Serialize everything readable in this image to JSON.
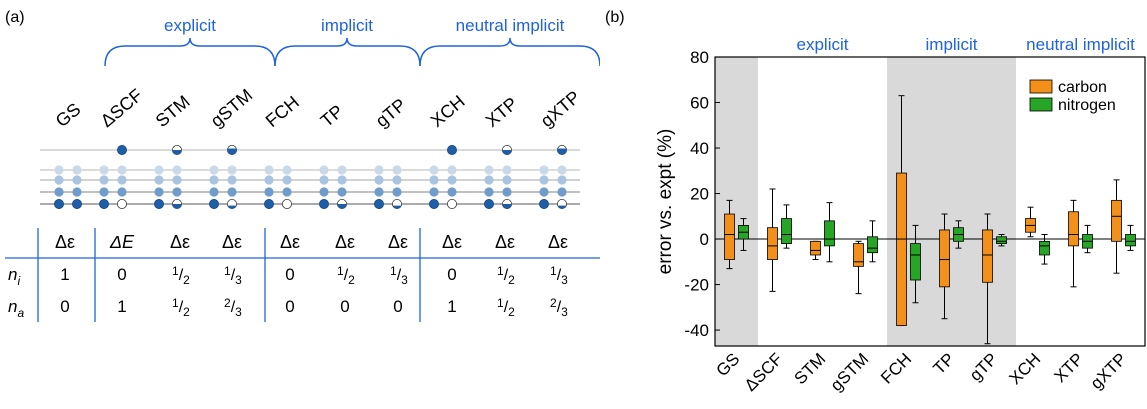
{
  "panel_a": {
    "label": "(a)",
    "groups": [
      {
        "name": "explicit",
        "color": "#1f63e0"
      },
      {
        "name": "implicit",
        "color": "#1f63e0"
      },
      {
        "name": "neutral implicit",
        "color": "#1f63e0"
      }
    ],
    "methods": [
      "GS",
      "ΔSCF",
      "STM",
      "gSTM",
      "FCH",
      "TP",
      "gTP",
      "XCH",
      "XTP",
      "gXTP"
    ],
    "occupation_states": [
      {
        "method": "GS",
        "core": "full",
        "virtual": "empty"
      },
      {
        "method": "ΔSCF",
        "core": "empty",
        "virtual": "full"
      },
      {
        "method": "STM",
        "core": "half",
        "virtual": "half"
      },
      {
        "method": "gSTM",
        "core": "third",
        "virtual": "two_thirds"
      },
      {
        "method": "FCH",
        "core": "empty",
        "virtual": "empty"
      },
      {
        "method": "TP",
        "core": "half",
        "virtual": "empty"
      },
      {
        "method": "gTP",
        "core": "third",
        "virtual": "empty"
      },
      {
        "method": "XCH",
        "core": "empty",
        "virtual": "full"
      },
      {
        "method": "XTP",
        "core": "half",
        "virtual": "half"
      },
      {
        "method": "gXTP",
        "core": "third",
        "virtual": "two_thirds"
      }
    ],
    "table": {
      "header": [
        "Δε",
        "ΔE",
        "Δε",
        "Δε",
        "Δε",
        "Δε",
        "Δε",
        "Δε",
        "Δε",
        "Δε"
      ],
      "rows": [
        {
          "label": "n",
          "subscript": "i",
          "values": [
            {
              "text": "1"
            },
            {
              "text": "0"
            },
            {
              "num": "1",
              "den": "2"
            },
            {
              "num": "1",
              "den": "3"
            },
            {
              "text": "0"
            },
            {
              "num": "1",
              "den": "2"
            },
            {
              "num": "1",
              "den": "3"
            },
            {
              "text": "0"
            },
            {
              "num": "1",
              "den": "2"
            },
            {
              "num": "1",
              "den": "3"
            }
          ]
        },
        {
          "label": "n",
          "subscript": "a",
          "values": [
            {
              "text": "0"
            },
            {
              "text": "1"
            },
            {
              "num": "1",
              "den": "2"
            },
            {
              "num": "2",
              "den": "3"
            },
            {
              "text": "0"
            },
            {
              "text": "0"
            },
            {
              "text": "0"
            },
            {
              "text": "1"
            },
            {
              "num": "1",
              "den": "2"
            },
            {
              "num": "2",
              "den": "3"
            }
          ]
        }
      ]
    }
  },
  "chart_data": {
    "type": "box",
    "panel_label": "(b)",
    "ylabel": "error vs. expt (%)",
    "ylim": [
      -47,
      80
    ],
    "yticks": [
      80,
      60,
      40,
      20,
      0,
      -20,
      -40
    ],
    "categories": [
      "GS",
      "ΔSCF",
      "STM",
      "gSTM",
      "FCH",
      "TP",
      "gTP",
      "XCH",
      "XTP",
      "gXTP"
    ],
    "group_labels": [
      {
        "text": "explicit",
        "from": 1,
        "to": 3
      },
      {
        "text": "implicit",
        "from": 4,
        "to": 6
      },
      {
        "text": "neutral implicit",
        "from": 7,
        "to": 9
      }
    ],
    "shaded_categories": [
      0,
      4,
      5,
      6
    ],
    "colors": {
      "carbon": "#f39019",
      "nitrogen": "#26a526",
      "shade": "#d9d9d9",
      "group_text": "#1f63e0"
    },
    "legend": {
      "position": "top-right",
      "entries": [
        "carbon",
        "nitrogen"
      ]
    },
    "series": [
      {
        "name": "carbon",
        "boxes": [
          {
            "min": -13,
            "q1": -9,
            "median": 2,
            "q3": 11,
            "max": 17
          },
          {
            "min": -23,
            "q1": -9,
            "median": -3,
            "q3": 5,
            "max": 22
          },
          {
            "min": -9,
            "q1": -7,
            "median": -5,
            "q3": -1,
            "max": -1
          },
          {
            "min": -24,
            "q1": -12,
            "median": -10,
            "q3": -2,
            "max": -1
          },
          {
            "min": -38,
            "q1": -38,
            "median": 0,
            "q3": 29,
            "max": 63
          },
          {
            "min": -35,
            "q1": -21,
            "median": -9,
            "q3": 4,
            "max": 11
          },
          {
            "min": -46,
            "q1": -19,
            "median": -7,
            "q3": 4,
            "max": 11
          },
          {
            "min": 1,
            "q1": 3,
            "median": 6,
            "q3": 9,
            "max": 14
          },
          {
            "min": -21,
            "q1": -3,
            "median": 2,
            "q3": 12,
            "max": 17
          },
          {
            "min": -15,
            "q1": -1,
            "median": 10,
            "q3": 17,
            "max": 26
          }
        ]
      },
      {
        "name": "nitrogen",
        "boxes": [
          {
            "min": -5,
            "q1": 0,
            "median": 3,
            "q3": 6,
            "max": 9
          },
          {
            "min": -4,
            "q1": -2,
            "median": 2,
            "q3": 9,
            "max": 15
          },
          {
            "min": -10,
            "q1": -3,
            "median": 0,
            "q3": 8,
            "max": 16
          },
          {
            "min": -10,
            "q1": -6,
            "median": -4,
            "q3": 1,
            "max": 8
          },
          {
            "min": -28,
            "q1": -18,
            "median": -7,
            "q3": -2,
            "max": 6
          },
          {
            "min": -4,
            "q1": -1,
            "median": 2,
            "q3": 5,
            "max": 8
          },
          {
            "min": -3,
            "q1": -2,
            "median": -1,
            "q3": 1,
            "max": 2
          },
          {
            "min": -11,
            "q1": -7,
            "median": -3,
            "q3": -1,
            "max": 2
          },
          {
            "min": -6,
            "q1": -4,
            "median": -1,
            "q3": 2,
            "max": 6
          },
          {
            "min": -5,
            "q1": -3,
            "median": -1,
            "q3": 2,
            "max": 6
          }
        ]
      }
    ]
  }
}
